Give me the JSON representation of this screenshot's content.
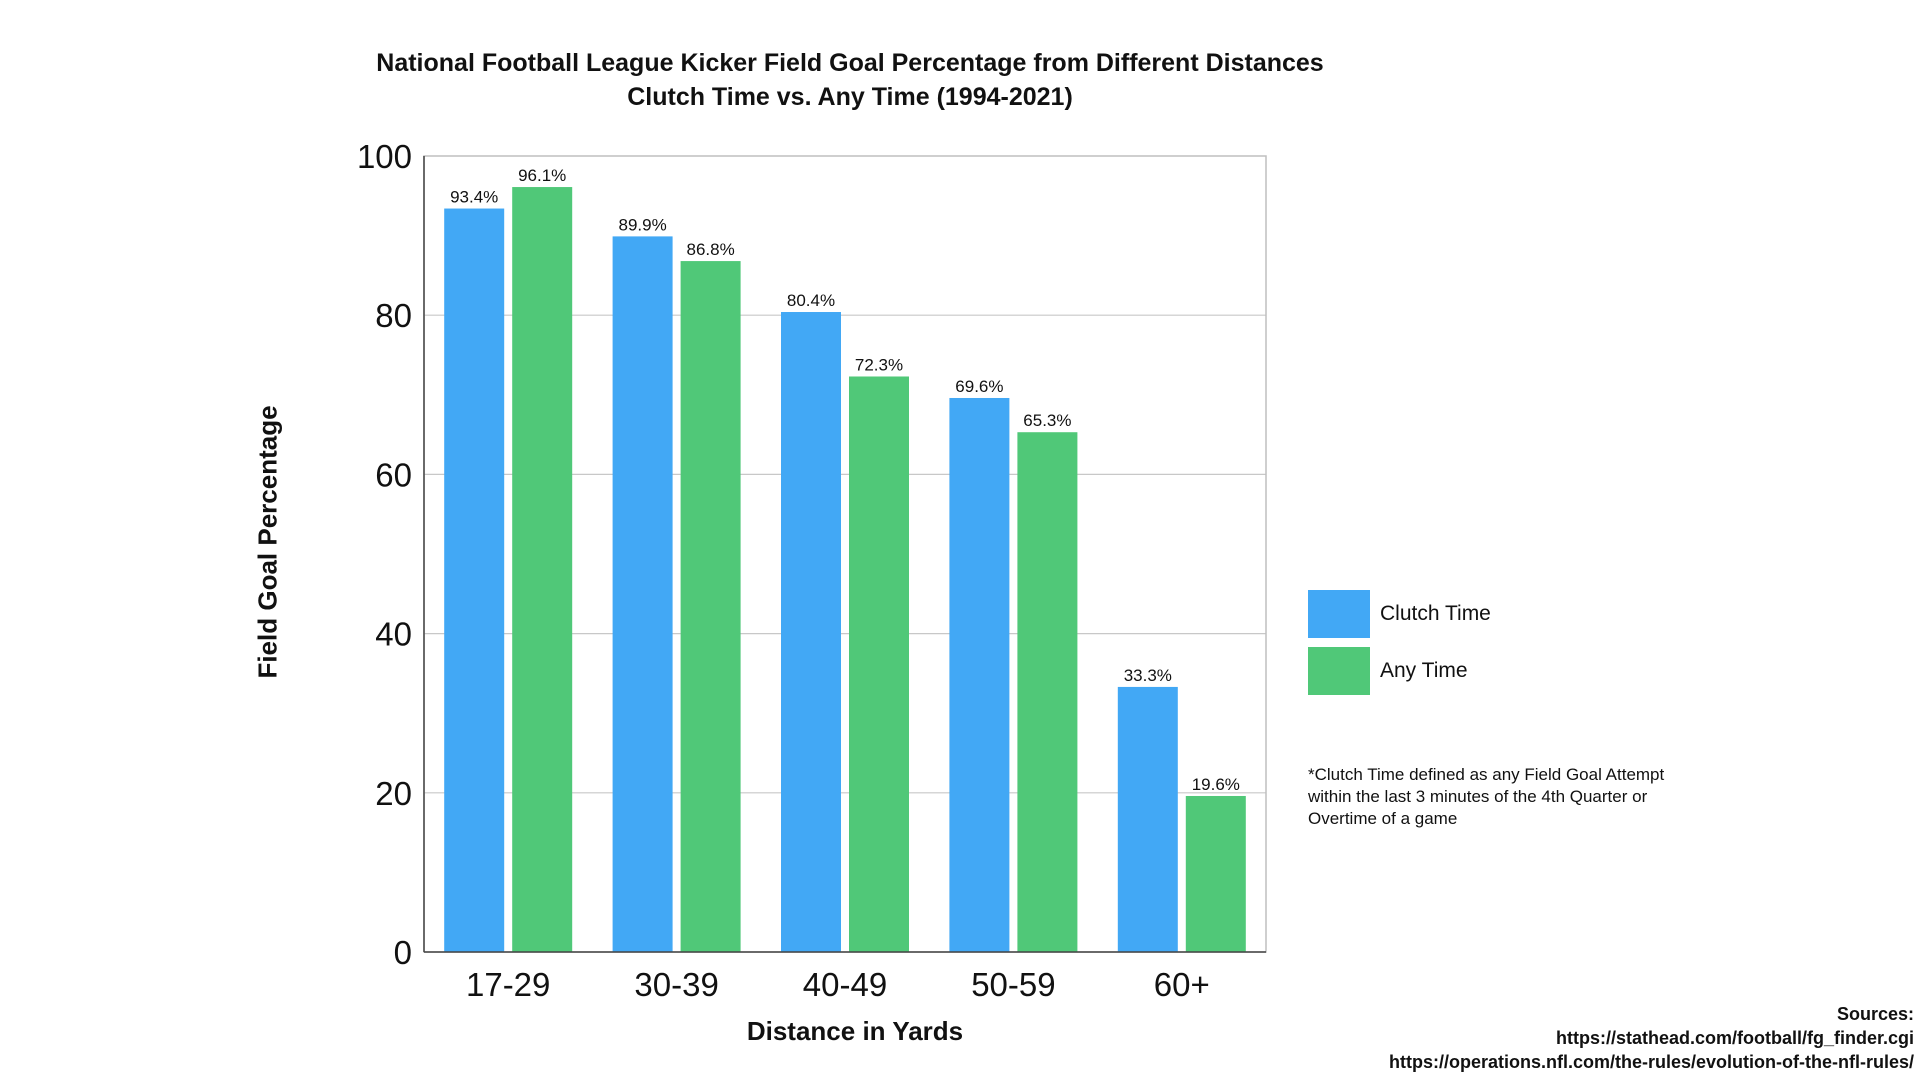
{
  "chart_data": {
    "type": "bar",
    "title": "National Football League Kicker Field Goal Percentage from Different Distances",
    "subtitle": "Clutch Time vs. Any Time (1994-2021)",
    "xlabel": "Distance in Yards",
    "ylabel": "Field Goal Percentage",
    "categories": [
      "17-29",
      "30-39",
      "40-49",
      "50-59",
      "60+"
    ],
    "series": [
      {
        "name": "Clutch Time",
        "color": "#42A8F5",
        "values": [
          93.4,
          89.9,
          80.4,
          69.6,
          33.3
        ],
        "labels": [
          "93.4%",
          "89.9%",
          "80.4%",
          "69.6%",
          "33.3%"
        ]
      },
      {
        "name": "Any Time",
        "color": "#50C878",
        "values": [
          96.1,
          86.8,
          72.3,
          65.3,
          19.6
        ],
        "labels": [
          "96.1%",
          "86.8%",
          "72.3%",
          "65.3%",
          "19.6%"
        ]
      }
    ],
    "ylim": [
      0,
      100
    ],
    "yticks": [
      "0",
      "20",
      "40",
      "60",
      "80",
      "100"
    ],
    "grid": true,
    "legend_position": "right"
  },
  "footnote": [
    "*Clutch Time defined as any Field Goal Attempt",
    "within the last 3 minutes of the 4th Quarter or",
    "Overtime of a game"
  ],
  "sources": {
    "heading": "Sources:",
    "links": [
      "https://stathead.com/football/fg_finder.cgi",
      "https://operations.nfl.com/the-rules/evolution-of-the-nfl-rules/"
    ]
  }
}
